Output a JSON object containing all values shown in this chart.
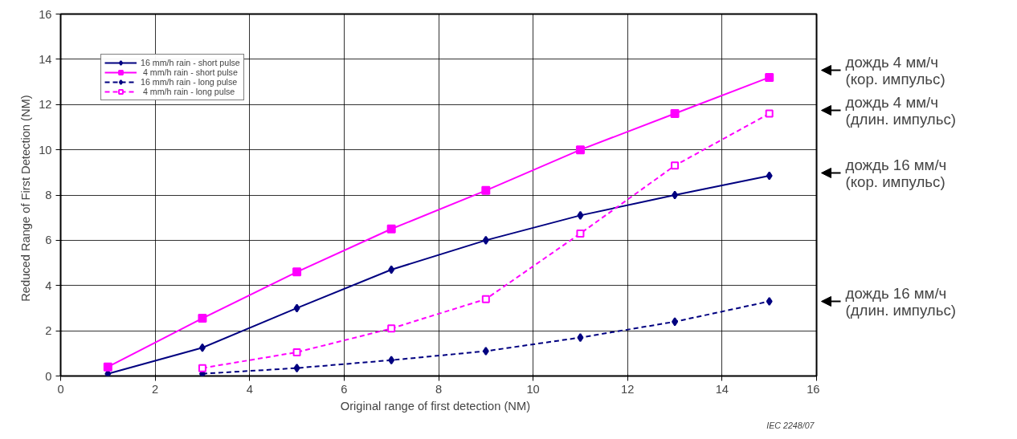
{
  "chart_data": {
    "type": "line",
    "xlabel": "Original range of first detection   (NM)",
    "ylabel": "Reduced Range of First Detection   (NM)",
    "xlim": [
      0,
      16
    ],
    "ylim": [
      0,
      16
    ],
    "xticks": [
      0,
      2,
      4,
      6,
      8,
      10,
      12,
      14,
      16
    ],
    "yticks": [
      0,
      2,
      4,
      6,
      8,
      10,
      12,
      14,
      16
    ],
    "grid": true,
    "legend": "top left",
    "series": [
      {
        "name": "16 mm/h rain - short pulse",
        "color": "#000080",
        "marker": "diamond",
        "line_style": "solid",
        "x": [
          1,
          3,
          5,
          7,
          9,
          11,
          13,
          15
        ],
        "values": [
          0.1,
          1.25,
          3.0,
          4.7,
          6.0,
          7.1,
          8.0,
          8.85
        ]
      },
      {
        "name": " 4 mm/h rain - short pulse",
        "color": "#ff00ff",
        "marker": "square",
        "line_style": "solid",
        "x": [
          1,
          3,
          5,
          7,
          9,
          11,
          13,
          15
        ],
        "values": [
          0.4,
          2.55,
          4.6,
          6.5,
          8.2,
          10.0,
          11.6,
          13.2
        ]
      },
      {
        "name": "16 mm/h rain - long pulse",
        "color": "#000080",
        "marker": "diamond",
        "line_style": "dashed",
        "x": [
          3,
          5,
          7,
          9,
          11,
          13,
          15
        ],
        "values": [
          0.1,
          0.35,
          0.7,
          1.1,
          1.7,
          2.4,
          3.3
        ]
      },
      {
        "name": " 4 mm/h rain - long pulse",
        "color": "#ff00ff",
        "marker": "square_open",
        "line_style": "dashed",
        "x": [
          3,
          5,
          7,
          9,
          11,
          13,
          15
        ],
        "values": [
          0.35,
          1.05,
          2.1,
          3.4,
          6.3,
          9.3,
          11.6
        ]
      }
    ],
    "annotations": [
      "дождь 4 мм/ч\n  (кор. импульс)",
      "дождь 4 мм/ч\n  (длин. импульс)",
      "дождь 16 мм/ч\n  (кор. импульс)",
      "дождь 16 мм/ч\n  (длин. импульс)",
      "IEC  2248/07"
    ]
  }
}
